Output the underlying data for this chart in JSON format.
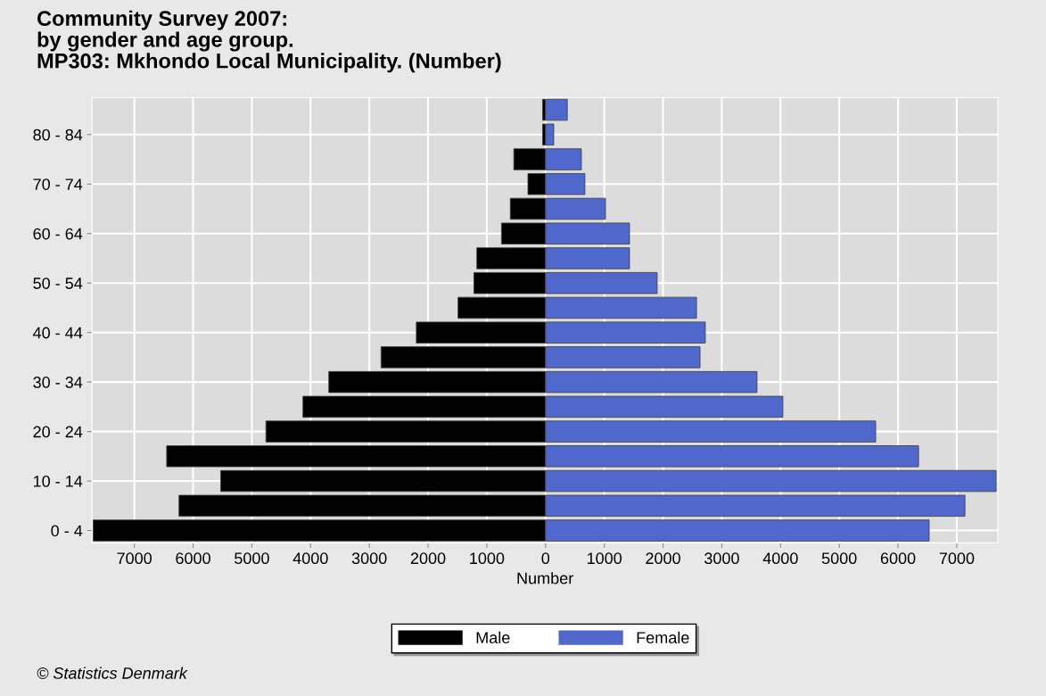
{
  "chart_data": {
    "type": "bar",
    "orientation": "horizontal",
    "stacked": true,
    "title": "Community Survey 2007:\nby gender and age group.\nMP303: Mkhondo Local Municipality. (Number)",
    "xlabel": "Number",
    "categories": [
      null,
      "80 - 84",
      null,
      "70 - 74",
      null,
      "60 - 64",
      null,
      "50 - 54",
      null,
      "40 - 44",
      null,
      "30 - 34",
      null,
      "20 - 24",
      null,
      "10 - 14",
      null,
      "0 - 4"
    ],
    "series": [
      {
        "name": "Male",
        "color": "#000000",
        "values": [
          -50,
          -50,
          -540,
          -300,
          -600,
          -750,
          -1170,
          -1220,
          -1490,
          -2200,
          -2800,
          -3690,
          -4130,
          -4760,
          -6450,
          -5530,
          -6240,
          -7700
        ]
      },
      {
        "name": "Female",
        "color": "#5068cc",
        "values": [
          370,
          140,
          610,
          670,
          1020,
          1430,
          1430,
          1900,
          2570,
          2720,
          2630,
          3600,
          4040,
          5620,
          6350,
          7670,
          7140,
          6530
        ]
      }
    ],
    "xlim": [
      -7720,
      7700
    ],
    "xticks": [
      {
        "value": -7000,
        "label": "7000"
      },
      {
        "value": -6000,
        "label": "6000"
      },
      {
        "value": -5000,
        "label": "5000"
      },
      {
        "value": -4000,
        "label": "4000"
      },
      {
        "value": -3000,
        "label": "3000"
      },
      {
        "value": -2000,
        "label": "2000"
      },
      {
        "value": -1000,
        "label": "1000"
      },
      0,
      1000,
      2000,
      3000,
      4000,
      5000,
      6000,
      7000
    ],
    "grid": true,
    "legend": "bottom",
    "annotations": [
      "© Statistics Denmark"
    ]
  }
}
